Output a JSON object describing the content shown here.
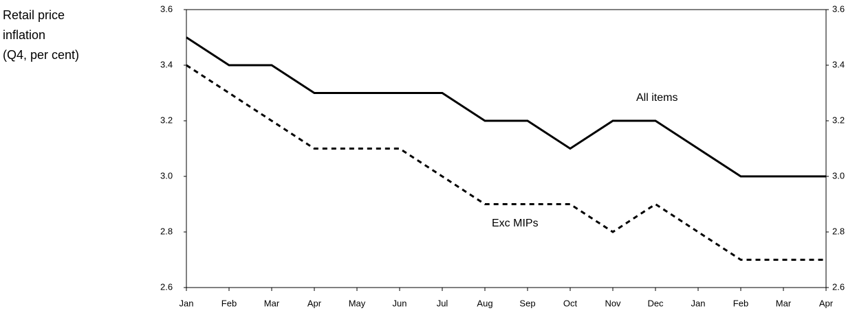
{
  "chart_data": {
    "type": "line",
    "y_label_lines": [
      "Retail price",
      "inflation",
      "(Q4, per cent)"
    ],
    "categories": [
      "Jan",
      "Feb",
      "Mar",
      "Apr",
      "May",
      "Jun",
      "Jul",
      "Aug",
      "Sep",
      "Oct",
      "Nov",
      "Dec",
      "Jan",
      "Feb",
      "Mar",
      "Apr"
    ],
    "series": [
      {
        "name": "All items",
        "color": "#000000",
        "line_style": "solid",
        "values": [
          3.5,
          3.4,
          3.4,
          3.3,
          3.3,
          3.3,
          3.3,
          3.2,
          3.2,
          3.1,
          3.2,
          3.2,
          3.1,
          3.0,
          3.0,
          3.0
        ]
      },
      {
        "name": "Exc MIPs",
        "color": "#000000",
        "line_style": "dashed",
        "values": [
          3.4,
          3.3,
          3.2,
          3.1,
          3.1,
          3.1,
          3.0,
          2.9,
          2.9,
          2.9,
          2.8,
          2.9,
          2.8,
          2.7,
          2.7,
          2.7
        ]
      }
    ],
    "ylim": [
      2.6,
      3.6
    ],
    "yticks": [
      2.6,
      2.8,
      {
        "value": 3,
        "label": "3.0"
      },
      3.2,
      3.4,
      3.6
    ],
    "y2lim": [
      2.6,
      3.6
    ],
    "y2ticks": [
      2.6,
      2.8,
      {
        "value": 3,
        "label": "3.0"
      },
      3.2,
      3.4,
      3.6
    ],
    "grid": false
  }
}
